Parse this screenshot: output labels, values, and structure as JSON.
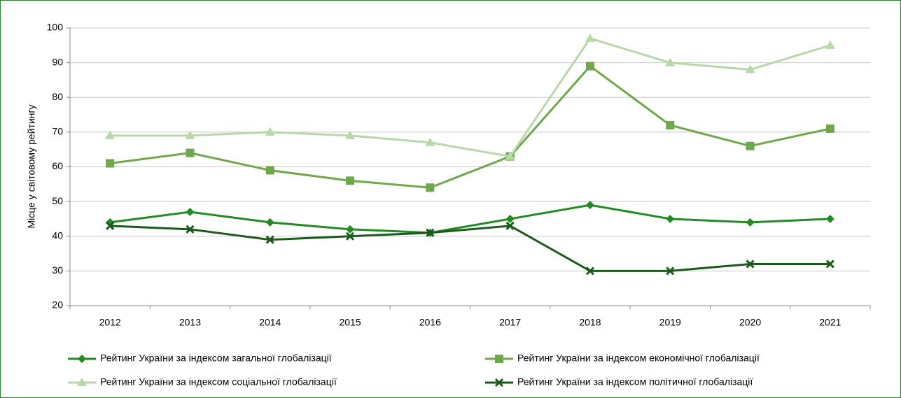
{
  "chart_data": {
    "type": "line",
    "ylabel": "Місце у світовому  рейтингу",
    "categories": [
      "2012",
      "2013",
      "2014",
      "2015",
      "2016",
      "2017",
      "2018",
      "2019",
      "2020",
      "2021"
    ],
    "series": [
      {
        "name": "Рейтинг України за індексом загальної глобалізації",
        "color": "#238b23",
        "marker": "diamond",
        "values": [
          44,
          47,
          44,
          42,
          41,
          45,
          49,
          45,
          44,
          45
        ]
      },
      {
        "name": "Рейтинг України за індексом економічної глобалізації",
        "color": "#6fa84a",
        "marker": "square",
        "values": [
          61,
          64,
          59,
          56,
          54,
          63,
          89,
          72,
          66,
          71
        ]
      },
      {
        "name": "Рейтинг України за індексом соціальної глобалізації",
        "color": "#b9d8a9",
        "marker": "triangle",
        "values": [
          69,
          69,
          70,
          69,
          67,
          63,
          97,
          90,
          88,
          95
        ]
      },
      {
        "name": "Рейтинг України за індексом політичної глобалізації",
        "color": "#1b5a1b",
        "marker": "x",
        "values": [
          43,
          42,
          39,
          40,
          41,
          43,
          30,
          30,
          32,
          32
        ]
      }
    ],
    "ylim": [
      20,
      100
    ],
    "yticks": [
      20,
      30,
      40,
      50,
      60,
      70,
      80,
      90,
      100
    ],
    "grid": true
  }
}
